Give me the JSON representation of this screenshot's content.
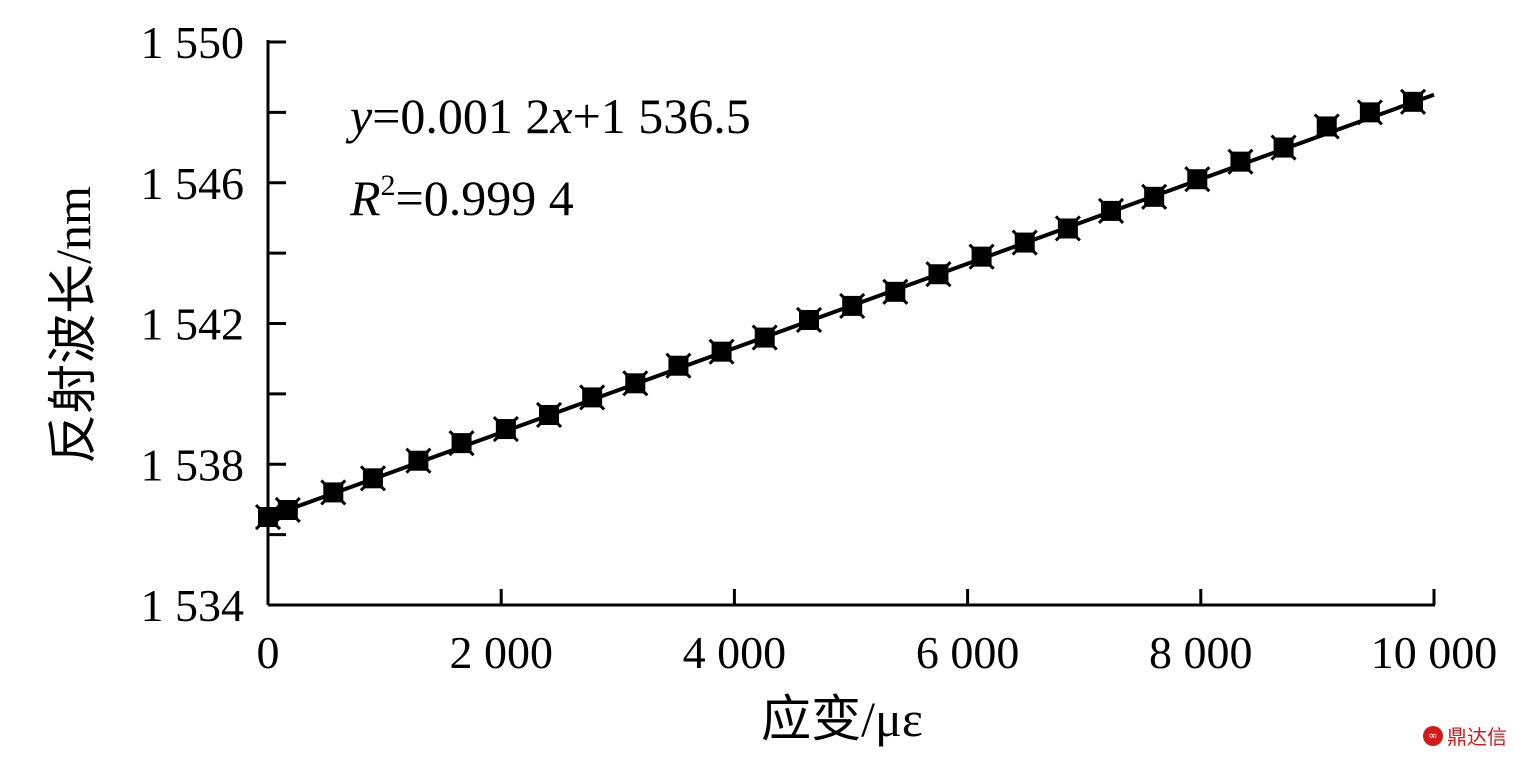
{
  "chart_data": {
    "type": "scatter",
    "xlabel": "应变/με",
    "ylabel": "反射波长/nm",
    "xlim": [
      0,
      10000
    ],
    "ylim": [
      1534,
      1550
    ],
    "xticks": [
      0,
      2000,
      4000,
      6000,
      8000,
      10000
    ],
    "xtick_labels": [
      "0",
      "2 000",
      "4 000",
      "6 000",
      "8 000",
      "10 000"
    ],
    "yticks": [
      1534,
      1538,
      1542,
      1546,
      1550
    ],
    "ytick_labels": [
      "1 534",
      "1 538",
      "1 542",
      "1 546",
      "1 550"
    ],
    "y_minor_step": 2,
    "fit": {
      "slope": 0.0012,
      "intercept": 1536.5
    },
    "equation": {
      "y_var": "y",
      "y_rhs_a": "=0.001 2",
      "x_var": "x",
      "y_rhs_b": "+1 536.5",
      "r_var": "R",
      "r_sup": "2",
      "r_rhs": "=0.999 4"
    },
    "grid": false,
    "legend": "none",
    "series": [
      {
        "marker": "square",
        "x": [
          0,
          170,
          560,
          900,
          1290,
          1660,
          2040,
          2410,
          2780,
          3150,
          3520,
          3890,
          4260,
          4640,
          5010,
          5380,
          5750,
          6120,
          6490,
          6860,
          7230,
          7600,
          7970,
          8340,
          8710,
          9080,
          9450,
          9820
        ],
        "y": [
          1536.5,
          1536.7,
          1537.2,
          1537.6,
          1538.1,
          1538.6,
          1539.0,
          1539.4,
          1539.9,
          1540.3,
          1540.8,
          1541.2,
          1541.6,
          1542.1,
          1542.5,
          1542.9,
          1543.4,
          1543.9,
          1544.3,
          1544.7,
          1545.2,
          1545.6,
          1546.1,
          1546.6,
          1547.0,
          1547.6,
          1548.0,
          1548.3
        ]
      }
    ],
    "colors": {
      "marker": "#000000",
      "line": "#000000",
      "axis": "#000000"
    }
  },
  "watermark": {
    "logo": "∞",
    "text": "鼎达信",
    "color": "#d11a1a"
  }
}
